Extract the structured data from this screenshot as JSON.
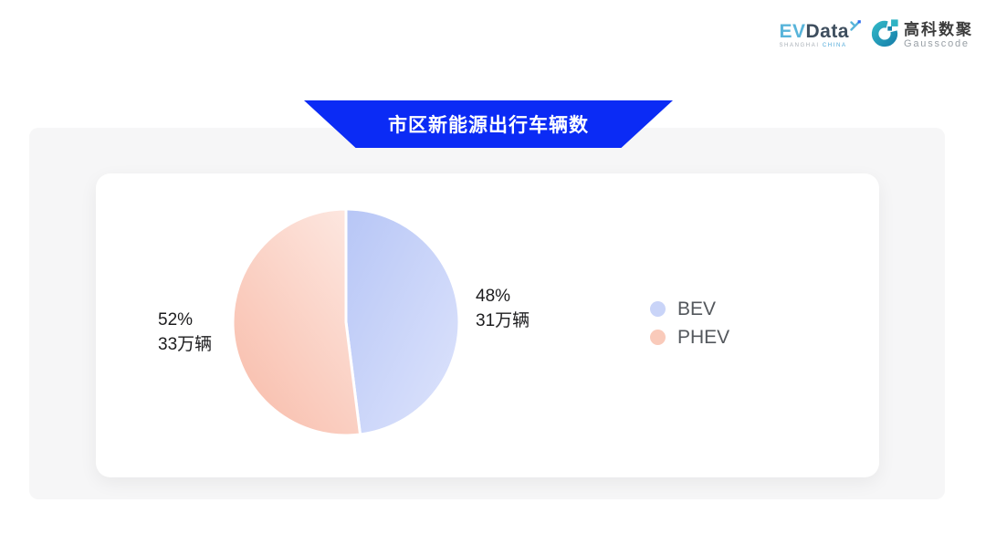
{
  "header": {
    "evdata_logo": {
      "ev": "EV",
      "data": "Data",
      "sub_left": "SHANGHAI",
      "sub_right": "CHINA"
    },
    "gausscode_logo": {
      "cn": "高科数聚",
      "en": "Gausscode"
    }
  },
  "banner": {
    "title": "市区新能源出行车辆数",
    "color": "#0b2bf5"
  },
  "chart_data": {
    "type": "pie",
    "title": "市区新能源出行车辆数",
    "categories": [
      "BEV",
      "PHEV"
    ],
    "values": [
      31,
      33
    ],
    "percents": [
      48,
      52
    ],
    "unit": "万辆",
    "labels": [
      {
        "percent": "48%",
        "value": "31万辆"
      },
      {
        "percent": "52%",
        "value": "33万辆"
      }
    ],
    "slice_gradients": [
      {
        "from": "#b7c6f6",
        "to": "#dee4fc"
      },
      {
        "from": "#f8bcaa",
        "to": "#fde7e0"
      }
    ],
    "legend": [
      "BEV",
      "PHEV"
    ],
    "legend_colors": [
      "#c9d4f8",
      "#f9caba"
    ],
    "legend_position": "right",
    "start_angle_deg": -90,
    "border_color": "#ffffff"
  }
}
